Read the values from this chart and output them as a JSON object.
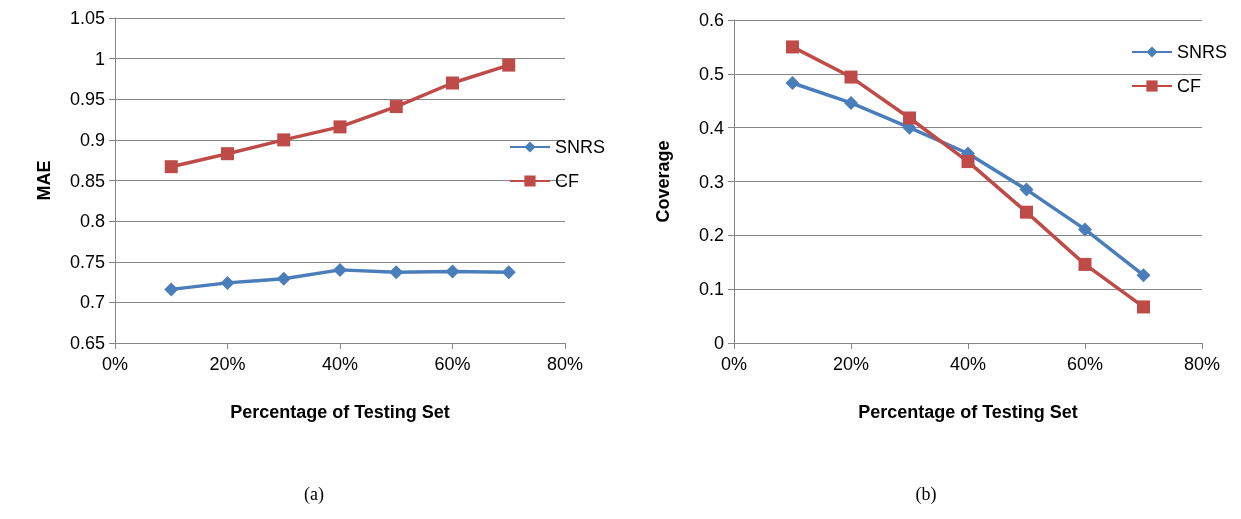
{
  "chart_data": [
    {
      "type": "line",
      "xlabel": "Percentage of Testing Set",
      "ylabel": "MAE",
      "annotations": [
        "(a)"
      ],
      "x": [
        10,
        20,
        30,
        40,
        50,
        60,
        70
      ],
      "xlim": [
        0,
        80
      ],
      "xticks": [
        {
          "value": 0,
          "label": "0%"
        },
        {
          "value": 20,
          "label": "20%"
        },
        {
          "value": 40,
          "label": "40%"
        },
        {
          "value": 60,
          "label": "60%"
        },
        {
          "value": 80,
          "label": "80%"
        }
      ],
      "ylim": [
        0.65,
        1.05
      ],
      "yticks": [
        0.65,
        0.7,
        0.75,
        0.8,
        0.85,
        0.9,
        0.95,
        1,
        1.05
      ],
      "grid": "y",
      "legend": "right",
      "line_style": "solid",
      "series": [
        {
          "name": "SNRS",
          "color": "#4a7ebb",
          "marker": "diamond",
          "values": [
            0.716,
            0.724,
            0.729,
            0.74,
            0.737,
            0.738,
            0.737
          ]
        },
        {
          "name": "CF",
          "color": "#be4b48",
          "marker": "square",
          "values": [
            0.867,
            0.883,
            0.9,
            0.916,
            0.941,
            0.97,
            0.992
          ]
        }
      ]
    },
    {
      "type": "line",
      "xlabel": "Percentage of Testing Set",
      "ylabel": "Coverage",
      "annotations": [
        "(b)"
      ],
      "x": [
        10,
        20,
        30,
        40,
        50,
        60,
        70
      ],
      "xlim": [
        0,
        80
      ],
      "xticks": [
        {
          "value": 0,
          "label": "0%"
        },
        {
          "value": 20,
          "label": "20%"
        },
        {
          "value": 40,
          "label": "40%"
        },
        {
          "value": 60,
          "label": "60%"
        },
        {
          "value": 80,
          "label": "80%"
        }
      ],
      "ylim": [
        0,
        0.6
      ],
      "yticks": [
        0,
        0.1,
        0.2,
        0.3,
        0.4,
        0.5,
        0.6
      ],
      "grid": "y",
      "legend": "top right",
      "line_style": "solid",
      "series": [
        {
          "name": "SNRS",
          "color": "#4a7ebb",
          "marker": "diamond",
          "values": [
            0.483,
            0.446,
            0.4,
            0.352,
            0.285,
            0.211,
            0.126
          ]
        },
        {
          "name": "CF",
          "color": "#be4b48",
          "marker": "square",
          "values": [
            0.55,
            0.494,
            0.418,
            0.337,
            0.243,
            0.146,
            0.067
          ]
        }
      ]
    }
  ]
}
